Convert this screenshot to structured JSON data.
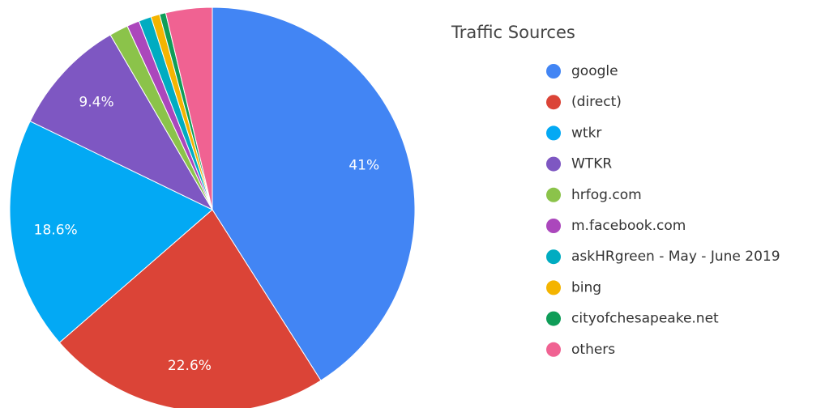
{
  "chart_data": {
    "type": "pie",
    "title": "Traffic Sources",
    "categories": [
      "google",
      "(direct)",
      "wtkr",
      "WTKR",
      "hrfog.com",
      "m.facebook.com",
      "askHRgreen - May - June 2019",
      "bing",
      "cityofchesapeake.net",
      "others"
    ],
    "values": [
      41,
      22.6,
      18.6,
      9.4,
      1.5,
      1.0,
      1.0,
      0.7,
      0.5,
      3.7
    ],
    "value_labels": [
      "41%",
      "22.6%",
      "18.6%",
      "9.4%",
      null,
      null,
      null,
      null,
      null,
      null
    ],
    "colors": [
      "#4285f4",
      "#db4437",
      "#03a9f4",
      "#7e57c2",
      "#8bc34a",
      "#ab47bc",
      "#00acc1",
      "#f4b400",
      "#0f9d58",
      "#f06292"
    ],
    "legend": "right"
  }
}
